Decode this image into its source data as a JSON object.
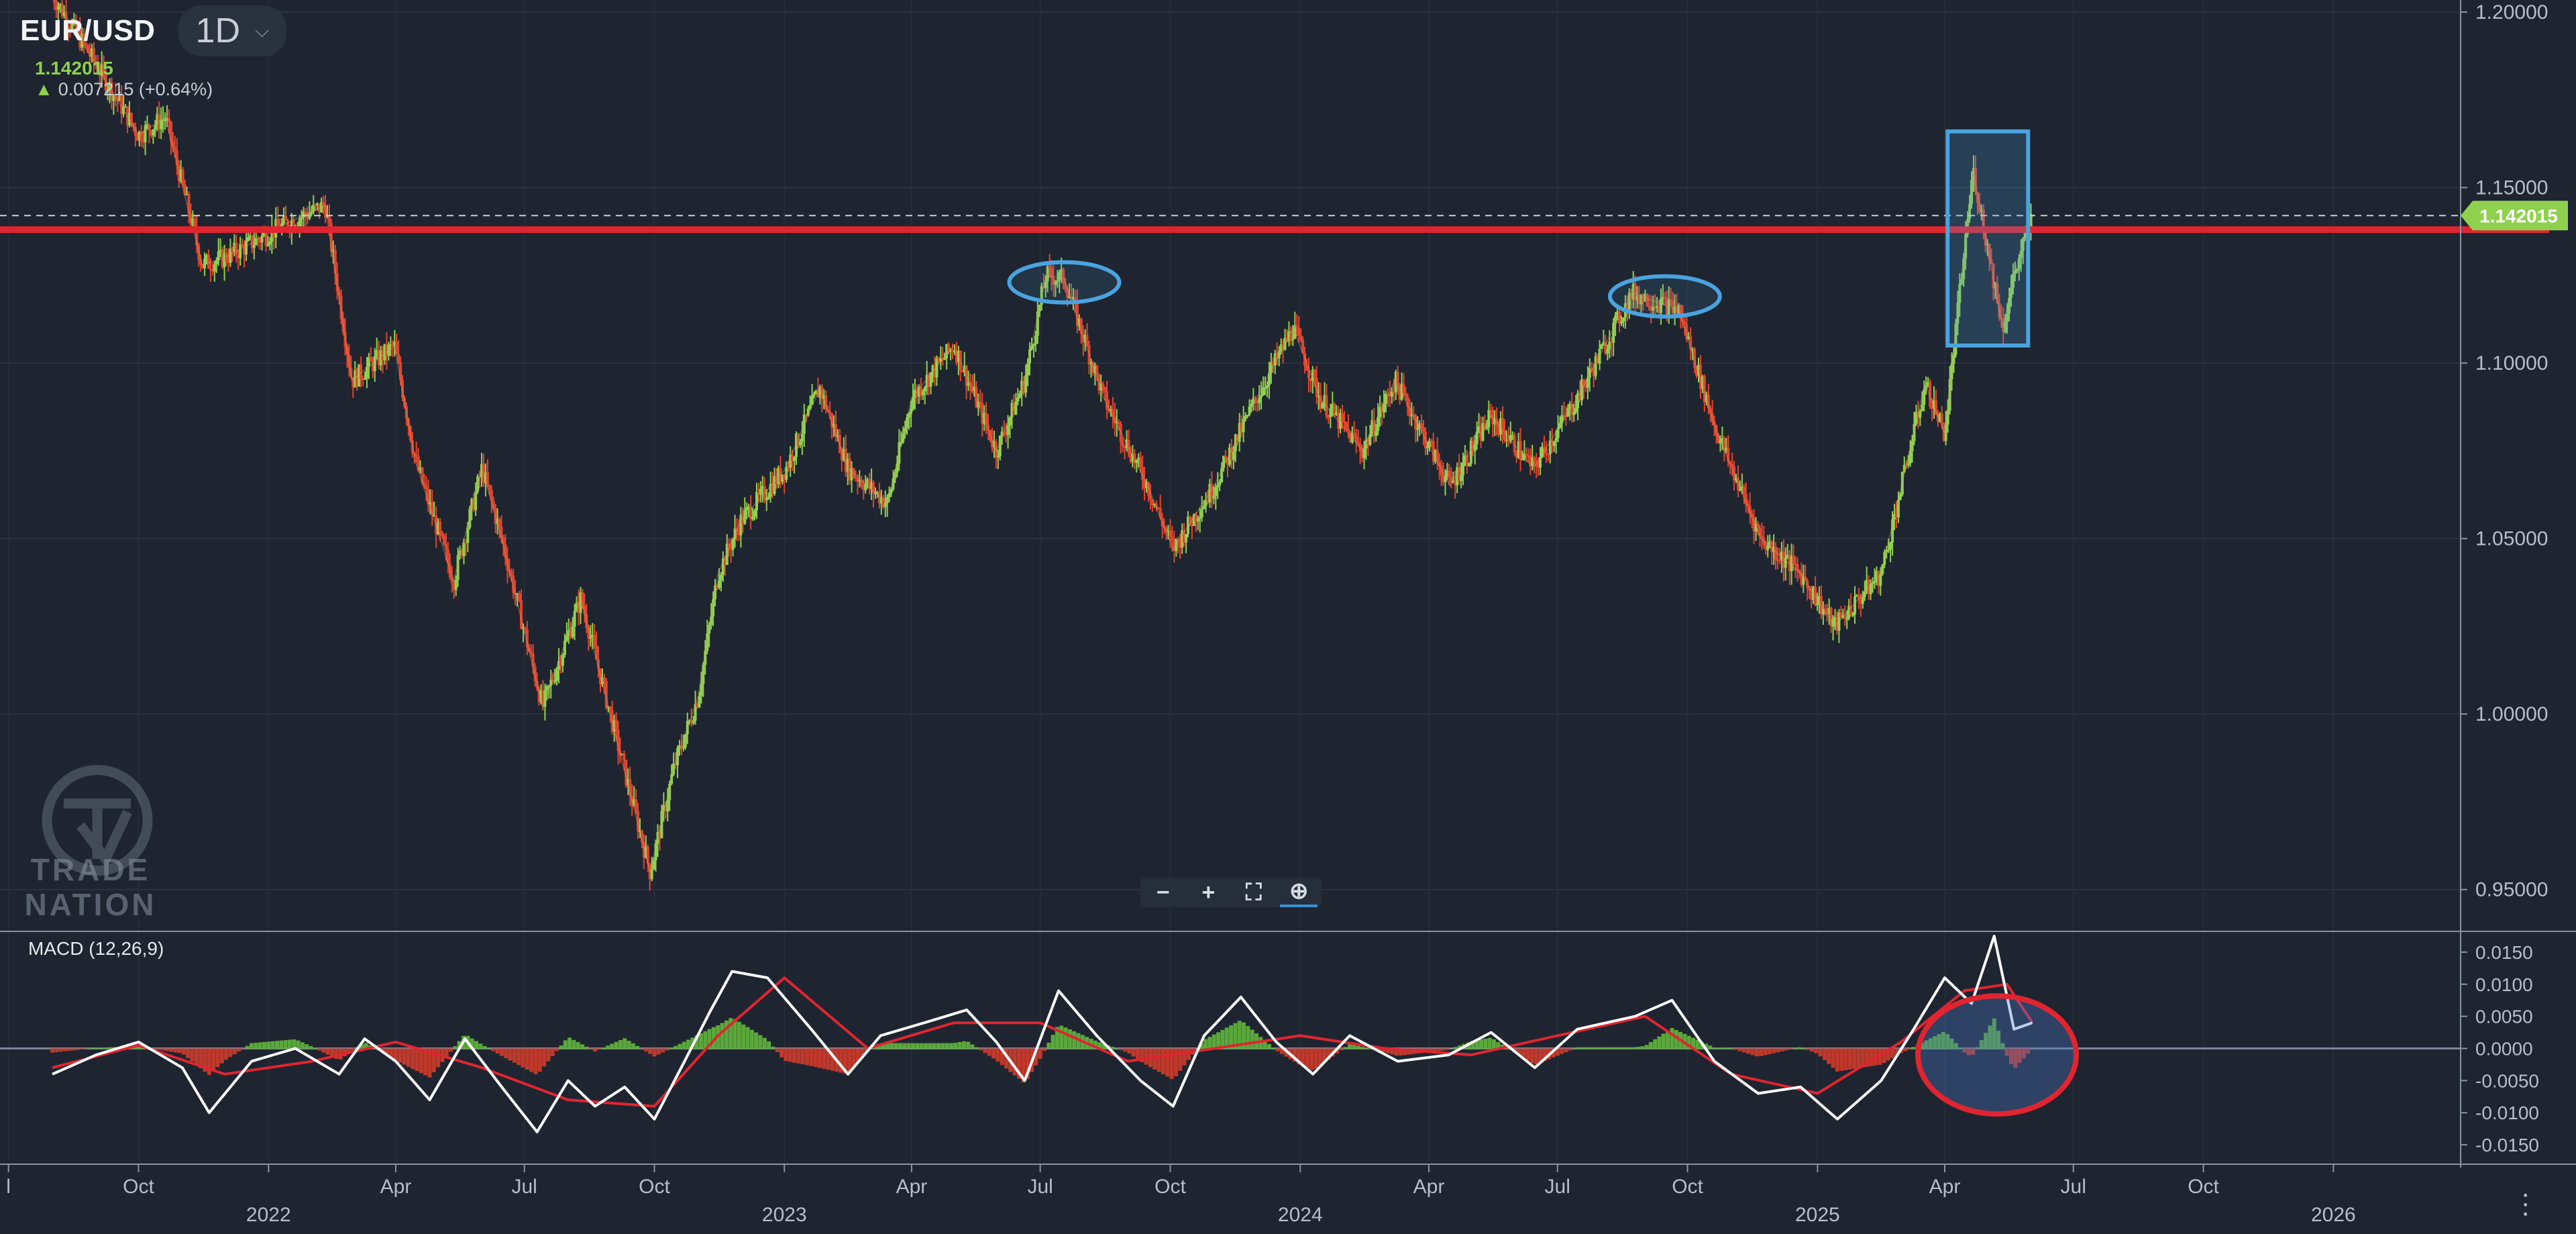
{
  "header": {
    "symbol": "EUR/USD",
    "timeframe": "1D",
    "last_price": "1.142015",
    "change": "0.007215 (+0.64%)"
  },
  "toolbar": {
    "zoom_out": "−",
    "zoom_in": "+",
    "fit": "⛶",
    "zoom_reset": "⊕"
  },
  "macd_label": "MACD (12,26,9)",
  "logo": {
    "line1": "TRADE",
    "line2": "NATION"
  },
  "colors": {
    "bg": "#1e2530",
    "up": "#8fd14f",
    "down": "#e2442f",
    "resistance": "#e02530",
    "circle": "#4aa3e0",
    "macd_line": "#ffffff",
    "signal_line": "#e02530",
    "axis_text": "#b8bec8"
  },
  "chart_data": [
    {
      "type": "line",
      "title": "EUR/USD",
      "x_ticks": [
        "l",
        "Oct",
        "2022",
        "Apr",
        "Jul",
        "Oct",
        "2023",
        "Apr",
        "Jul",
        "Oct",
        "2024",
        "Apr",
        "Jul",
        "Oct",
        "2025",
        "Apr",
        "Jul",
        "Oct",
        "2026"
      ],
      "x_tick_dates": [
        "2021-07-01",
        "2021-10-01",
        "2022-01-01",
        "2022-04-01",
        "2022-07-01",
        "2022-10-01",
        "2023-01-01",
        "2023-04-01",
        "2023-07-01",
        "2023-10-01",
        "2024-01-01",
        "2024-04-01",
        "2024-07-01",
        "2024-10-01",
        "2025-01-01",
        "2025-04-01",
        "2025-07-01",
        "2025-10-01",
        "2026-01-01"
      ],
      "y_ticks": [
        "1.20000",
        "1.15000",
        "1.10000",
        "1.05000",
        "1.00000",
        "0.95000"
      ],
      "ylim": [
        0.94,
        1.2
      ],
      "series": [
        {
          "x": [
            "2021-08-01",
            "2021-09-01",
            "2021-10-01",
            "2021-10-20",
            "2021-11-15",
            "2021-12-01",
            "2022-01-15",
            "2022-02-10",
            "2022-03-01",
            "2022-03-31",
            "2022-04-15",
            "2022-05-12",
            "2022-06-01",
            "2022-06-15",
            "2022-07-14",
            "2022-08-10",
            "2022-09-01",
            "2022-09-28",
            "2022-10-15",
            "2022-11-01",
            "2022-11-15",
            "2022-12-01",
            "2023-01-02",
            "2023-01-26",
            "2023-02-15",
            "2023-03-15",
            "2023-04-01",
            "2023-05-01",
            "2023-05-31",
            "2023-06-20",
            "2023-07-05",
            "2023-07-18",
            "2023-08-15",
            "2023-09-15",
            "2023-10-03",
            "2023-11-01",
            "2023-12-01",
            "2023-12-27",
            "2024-01-15",
            "2024-02-14",
            "2024-03-08",
            "2024-04-16",
            "2024-05-15",
            "2024-06-14",
            "2024-07-15",
            "2024-08-23",
            "2024-09-25",
            "2024-10-22",
            "2024-11-22",
            "2024-12-20",
            "2025-01-13",
            "2025-02-15",
            "2025-03-18",
            "2025-04-01",
            "2025-04-21",
            "2025-05-12",
            "2025-05-20",
            "2025-06-02"
          ],
          "y": [
            1.205,
            1.185,
            1.165,
            1.17,
            1.128,
            1.13,
            1.14,
            1.145,
            1.095,
            1.105,
            1.072,
            1.038,
            1.07,
            1.05,
            1.002,
            1.033,
            0.998,
            0.955,
            0.985,
            1.005,
            1.04,
            1.055,
            1.07,
            1.093,
            1.07,
            1.06,
            1.09,
            1.105,
            1.075,
            1.095,
            1.125,
            1.124,
            1.09,
            1.065,
            1.047,
            1.065,
            1.09,
            1.11,
            1.09,
            1.075,
            1.095,
            1.065,
            1.085,
            1.07,
            1.09,
            1.12,
            1.115,
            1.08,
            1.05,
            1.04,
            1.025,
            1.04,
            1.094,
            1.08,
            1.155,
            1.11,
            1.125,
            1.142
          ]
        }
      ],
      "annotations": [
        {
          "type": "hline",
          "label": "resistance",
          "y": 1.138
        },
        {
          "type": "hline",
          "label": "last",
          "y": 1.142015
        },
        {
          "type": "ellipse",
          "x": "2023-07-18",
          "y": 1.123
        },
        {
          "type": "ellipse",
          "x": "2024-09-15",
          "y": 1.119
        },
        {
          "type": "box",
          "x0": "2025-04-03",
          "x1": "2025-05-30",
          "y0": 1.105,
          "y1": 1.166
        }
      ],
      "grid": true
    },
    {
      "type": "line",
      "title": "MACD (12,26,9)",
      "y_ticks": [
        "0.0150",
        "0.0100",
        "0.0050",
        "0.0000",
        "-0.0050",
        "-0.0100",
        "-0.0150"
      ],
      "ylim": [
        -0.0175,
        0.0175
      ],
      "series": [
        {
          "x": [
            "2021-08-01",
            "2021-09-01",
            "2021-10-01",
            "2021-11-01",
            "2021-11-20",
            "2021-12-20",
            "2022-01-20",
            "2022-02-20",
            "2022-03-10",
            "2022-04-01",
            "2022-04-25",
            "2022-05-20",
            "2022-06-15",
            "2022-07-10",
            "2022-08-01",
            "2022-08-20",
            "2022-09-10",
            "2022-10-01",
            "2022-10-20",
            "2022-11-10",
            "2022-11-25",
            "2022-12-20",
            "2023-01-20",
            "2023-02-15",
            "2023-03-10",
            "2023-04-10",
            "2023-05-10",
            "2023-05-31",
            "2023-06-20",
            "2023-07-14",
            "2023-08-10",
            "2023-09-10",
            "2023-10-03",
            "2023-10-25",
            "2023-11-20",
            "2023-12-15",
            "2024-01-10",
            "2024-02-05",
            "2024-03-10",
            "2024-04-15",
            "2024-05-15",
            "2024-06-15",
            "2024-07-15",
            "2024-08-25",
            "2024-09-20",
            "2024-10-20",
            "2024-11-20",
            "2024-12-20",
            "2025-01-15",
            "2025-02-15",
            "2025-03-10",
            "2025-04-01",
            "2025-04-20",
            "2025-05-06",
            "2025-05-20",
            "2025-06-02"
          ],
          "y": [
            -0.004,
            -0.001,
            0.001,
            -0.003,
            -0.01,
            -0.002,
            0,
            -0.004,
            0.0015,
            -0.002,
            -0.008,
            0.0015,
            -0.006,
            -0.013,
            -0.005,
            -0.009,
            -0.006,
            -0.011,
            -0.003,
            0.006,
            0.012,
            0.011,
            0.003,
            -0.004,
            0.002,
            0.004,
            0.006,
            0.001,
            -0.005,
            0.009,
            0.002,
            -0.005,
            -0.009,
            0.002,
            0.008,
            0.001,
            -0.004,
            0.002,
            -0.002,
            -0.001,
            0.0025,
            -0.003,
            0.003,
            0.005,
            0.0075,
            -0.002,
            -0.007,
            -0.006,
            -0.011,
            -0.005,
            0.003,
            0.011,
            0.007,
            0.0175,
            0.003,
            0.004
          ]
        },
        {
          "x": [
            "2021-08-01",
            "2021-10-01",
            "2021-12-01",
            "2022-02-01",
            "2022-04-01",
            "2022-06-01",
            "2022-08-01",
            "2022-10-01",
            "2022-11-15",
            "2023-01-01",
            "2023-03-01",
            "2023-05-01",
            "2023-07-01",
            "2023-09-01",
            "2023-11-01",
            "2024-01-01",
            "2024-03-01",
            "2024-05-01",
            "2024-07-01",
            "2024-09-01",
            "2024-11-01",
            "2025-01-01",
            "2025-03-01",
            "2025-04-15",
            "2025-05-15",
            "2025-06-02"
          ],
          "y": [
            -0.003,
            0.0005,
            -0.004,
            -0.002,
            0.001,
            -0.003,
            -0.008,
            -0.009,
            0.002,
            0.011,
            0,
            0.004,
            0.004,
            -0.002,
            0,
            0.002,
            0,
            -0.001,
            0.002,
            0.005,
            -0.004,
            -0.007,
            0.001,
            0.009,
            0.01,
            0.004
          ]
        }
      ],
      "annotations": [
        {
          "type": "ellipse",
          "x": "2025-05-08",
          "y": -0.001
        }
      ]
    }
  ]
}
